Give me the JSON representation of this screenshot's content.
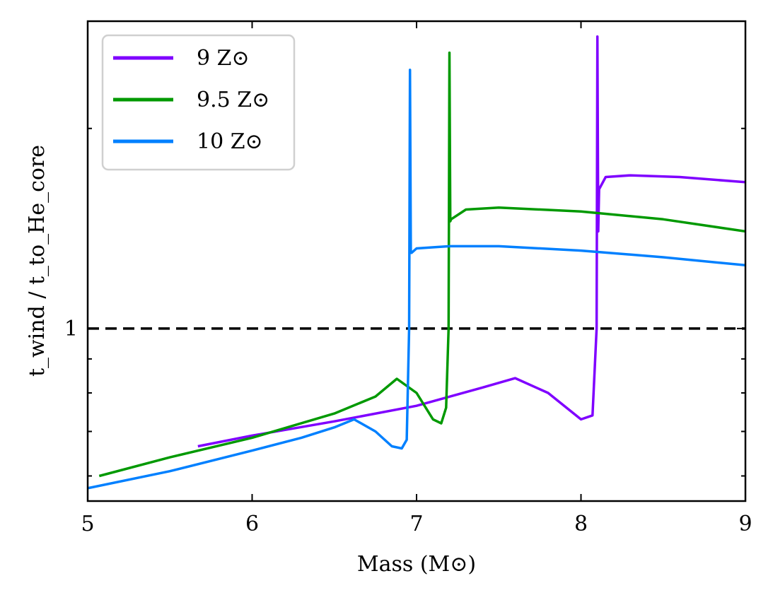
{
  "chart_data": {
    "type": "line",
    "title": "",
    "xlabel": "Mass (M⊙)",
    "ylabel": "t_wind / t_to_He_core",
    "xlim": [
      5,
      9
    ],
    "ylim": [
      0.55,
      2.9
    ],
    "y_scale": "log",
    "x_ticks": [
      5,
      6,
      7,
      8,
      9
    ],
    "y_tick_labels": [
      {
        "value": 1,
        "label": "1"
      }
    ],
    "grid": false,
    "legend": "top-left",
    "reference_line": {
      "y": 1,
      "style": "dashed",
      "color": "#000000"
    },
    "series": [
      {
        "name": "9 Z⊙",
        "color": "#7f00ff",
        "x": [
          5.67,
          6.0,
          6.5,
          7.0,
          7.4,
          7.6,
          7.8,
          8.0,
          8.07,
          8.095,
          8.1,
          8.105,
          8.11,
          8.15,
          8.3,
          8.6,
          9.0
        ],
        "y": [
          0.665,
          0.69,
          0.725,
          0.765,
          0.815,
          0.842,
          0.8,
          0.73,
          0.74,
          1.0,
          2.75,
          1.4,
          1.62,
          1.69,
          1.7,
          1.69,
          1.66
        ]
      },
      {
        "name": "9.5 Z⊙",
        "color": "#009900",
        "x": [
          5.07,
          5.5,
          6.0,
          6.5,
          6.75,
          6.88,
          7.0,
          7.1,
          7.15,
          7.18,
          7.195,
          7.2,
          7.205,
          7.21,
          7.3,
          7.5,
          8.0,
          8.5,
          9.0
        ],
        "y": [
          0.6,
          0.64,
          0.685,
          0.745,
          0.79,
          0.84,
          0.8,
          0.73,
          0.72,
          0.76,
          1.0,
          2.6,
          1.45,
          1.46,
          1.51,
          1.52,
          1.5,
          1.46,
          1.4
        ]
      },
      {
        "name": "10 Z⊙",
        "color": "#0080ff",
        "x": [
          5.0,
          5.5,
          6.0,
          6.3,
          6.5,
          6.62,
          6.75,
          6.85,
          6.91,
          6.94,
          6.955,
          6.96,
          6.965,
          6.97,
          7.0,
          7.2,
          7.5,
          8.0,
          8.5,
          9.0
        ],
        "y": [
          0.575,
          0.61,
          0.655,
          0.685,
          0.71,
          0.73,
          0.7,
          0.665,
          0.66,
          0.68,
          1.0,
          2.45,
          1.3,
          1.3,
          1.32,
          1.33,
          1.33,
          1.31,
          1.28,
          1.245
        ]
      }
    ]
  }
}
